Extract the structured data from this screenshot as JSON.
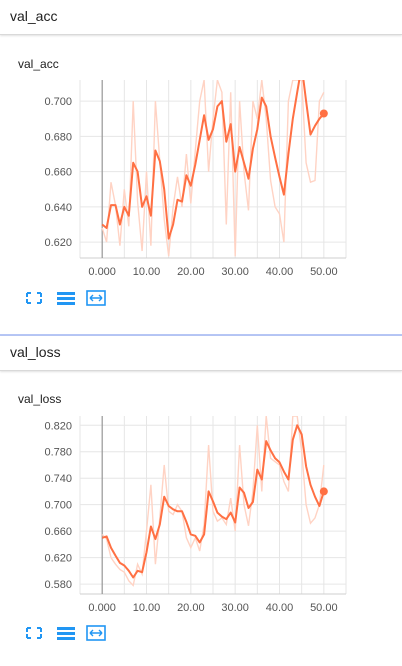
{
  "sections": [
    {
      "title": "val_acc",
      "card_title": "val_acc"
    },
    {
      "title": "val_loss",
      "card_title": "val_loss"
    }
  ],
  "toolbar": {
    "fit_icon": "fullscreen-corners-icon",
    "toggle_icon": "list-lines-icon",
    "expand_icon": "expand-box-icon"
  },
  "colors": {
    "line": "#ff7043",
    "smooth_bg": "#ffd3c4",
    "grid": "#e6e6e6",
    "axis": "#888888",
    "accent_divider": "#b6c6f5"
  },
  "chart_data": [
    {
      "type": "line",
      "title": "val_acc",
      "xlabel": "",
      "ylabel": "",
      "xlim": [
        -5,
        55
      ],
      "ylim": [
        0.611,
        0.712
      ],
      "x_ticks": [
        "0.000",
        "10.00",
        "20.00",
        "30.00",
        "40.00",
        "50.00"
      ],
      "x_tick_values": [
        0,
        10,
        20,
        30,
        40,
        50
      ],
      "y_ticks": [
        "0.620",
        "0.640",
        "0.660",
        "0.680",
        "0.700"
      ],
      "y_tick_values": [
        0.62,
        0.64,
        0.66,
        0.68,
        0.7
      ],
      "grid": true,
      "series": [
        {
          "role": "smoothed",
          "x": [
            0,
            1,
            2,
            3,
            4,
            5,
            6,
            7,
            8,
            9,
            10,
            11,
            12,
            13,
            14,
            15,
            16,
            17,
            18,
            19,
            20,
            21,
            22,
            23,
            24,
            25,
            26,
            27,
            28,
            29,
            30,
            31,
            32,
            33,
            34,
            35,
            36,
            37,
            38,
            39,
            40,
            41,
            42,
            43,
            44,
            45,
            46,
            47,
            48,
            49,
            50
          ],
          "values": [
            0.63,
            0.628,
            0.641,
            0.641,
            0.63,
            0.64,
            0.635,
            0.665,
            0.66,
            0.64,
            0.646,
            0.635,
            0.672,
            0.666,
            0.65,
            0.622,
            0.63,
            0.644,
            0.643,
            0.658,
            0.652,
            0.664,
            0.678,
            0.692,
            0.678,
            0.684,
            0.697,
            0.7,
            0.677,
            0.687,
            0.66,
            0.674,
            0.665,
            0.656,
            0.673,
            0.684,
            0.702,
            0.697,
            0.68,
            0.668,
            0.657,
            0.647,
            0.67,
            0.69,
            0.705,
            0.72,
            0.7,
            0.681,
            0.686,
            0.69,
            0.693
          ],
          "end_marker": true
        },
        {
          "role": "raw",
          "x": [
            0,
            1,
            2,
            3,
            4,
            5,
            6,
            7,
            8,
            9,
            10,
            11,
            12,
            13,
            14,
            15,
            16,
            17,
            18,
            19,
            20,
            21,
            22,
            23,
            24,
            25,
            26,
            27,
            28,
            29,
            30,
            31,
            32,
            33,
            34,
            35,
            36,
            37,
            38,
            39,
            40,
            41,
            42,
            43,
            44,
            45,
            46,
            47,
            48,
            49,
            50
          ],
          "values": [
            0.628,
            0.62,
            0.654,
            0.641,
            0.618,
            0.65,
            0.629,
            0.7,
            0.643,
            0.615,
            0.66,
            0.618,
            0.7,
            0.666,
            0.633,
            0.612,
            0.64,
            0.657,
            0.64,
            0.67,
            0.642,
            0.672,
            0.7,
            0.712,
            0.66,
            0.69,
            0.712,
            0.705,
            0.63,
            0.705,
            0.612,
            0.7,
            0.66,
            0.638,
            0.7,
            0.69,
            0.712,
            0.69,
            0.655,
            0.64,
            0.636,
            0.62,
            0.7,
            0.712,
            0.712,
            0.712,
            0.665,
            0.654,
            0.655,
            0.7,
            0.705
          ]
        }
      ]
    },
    {
      "type": "line",
      "title": "val_loss",
      "xlabel": "",
      "ylabel": "",
      "xlim": [
        -5,
        55
      ],
      "ylim": [
        0.565,
        0.834
      ],
      "x_ticks": [
        "0.000",
        "10.00",
        "20.00",
        "30.00",
        "40.00",
        "50.00"
      ],
      "x_tick_values": [
        0,
        10,
        20,
        30,
        40,
        50
      ],
      "y_ticks": [
        "0.580",
        "0.620",
        "0.660",
        "0.700",
        "0.740",
        "0.780",
        "0.820"
      ],
      "y_tick_values": [
        0.58,
        0.62,
        0.66,
        0.7,
        0.74,
        0.78,
        0.82
      ],
      "grid": true,
      "series": [
        {
          "role": "smoothed",
          "x": [
            0,
            1,
            2,
            3,
            4,
            5,
            6,
            7,
            8,
            9,
            10,
            11,
            12,
            13,
            14,
            15,
            16,
            17,
            18,
            19,
            20,
            21,
            22,
            23,
            24,
            25,
            26,
            27,
            28,
            29,
            30,
            31,
            32,
            33,
            34,
            35,
            36,
            37,
            38,
            39,
            40,
            41,
            42,
            43,
            44,
            45,
            46,
            47,
            48,
            49,
            50
          ],
          "values": [
            0.65,
            0.652,
            0.635,
            0.623,
            0.612,
            0.608,
            0.6,
            0.59,
            0.6,
            0.598,
            0.628,
            0.667,
            0.648,
            0.67,
            0.712,
            0.698,
            0.693,
            0.69,
            0.69,
            0.674,
            0.655,
            0.653,
            0.643,
            0.655,
            0.72,
            0.705,
            0.688,
            0.682,
            0.678,
            0.688,
            0.673,
            0.726,
            0.718,
            0.695,
            0.704,
            0.753,
            0.738,
            0.796,
            0.782,
            0.77,
            0.764,
            0.75,
            0.738,
            0.798,
            0.82,
            0.806,
            0.758,
            0.73,
            0.712,
            0.698,
            0.72
          ],
          "end_marker": true
        },
        {
          "role": "raw",
          "x": [
            0,
            1,
            2,
            3,
            4,
            5,
            6,
            7,
            8,
            9,
            10,
            11,
            12,
            13,
            14,
            15,
            16,
            17,
            18,
            19,
            20,
            21,
            22,
            23,
            24,
            25,
            26,
            27,
            28,
            29,
            30,
            31,
            32,
            33,
            34,
            35,
            36,
            37,
            38,
            39,
            40,
            41,
            42,
            43,
            44,
            45,
            46,
            47,
            48,
            49,
            50
          ],
          "values": [
            0.655,
            0.648,
            0.62,
            0.61,
            0.602,
            0.598,
            0.585,
            0.578,
            0.61,
            0.595,
            0.66,
            0.73,
            0.61,
            0.68,
            0.76,
            0.69,
            0.685,
            0.7,
            0.69,
            0.65,
            0.635,
            0.65,
            0.63,
            0.67,
            0.79,
            0.69,
            0.675,
            0.68,
            0.67,
            0.71,
            0.66,
            0.79,
            0.7,
            0.668,
            0.72,
            0.82,
            0.72,
            0.834,
            0.77,
            0.765,
            0.76,
            0.735,
            0.72,
            0.834,
            0.834,
            0.78,
            0.7,
            0.672,
            0.68,
            0.7,
            0.76
          ]
        }
      ]
    }
  ]
}
